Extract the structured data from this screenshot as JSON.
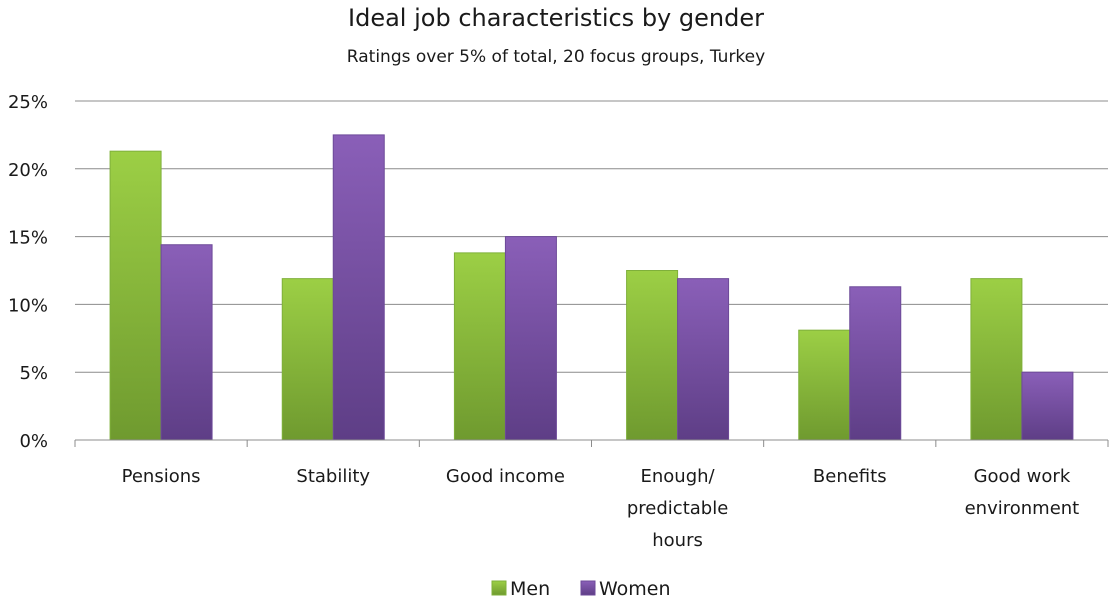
{
  "chart_data": {
    "type": "bar",
    "title": "Ideal job characteristics by gender",
    "subtitle": "Ratings over 5% of total, 20 focus groups, Turkey",
    "categories": [
      [
        "Pensions"
      ],
      [
        "Stability"
      ],
      [
        "Good income"
      ],
      [
        "Enough/",
        "predictable",
        "hours"
      ],
      [
        "Benefits"
      ],
      [
        "Good work",
        "environment"
      ]
    ],
    "series": [
      {
        "name": "Men",
        "values": [
          21.3,
          11.9,
          13.8,
          12.5,
          8.1,
          11.9
        ]
      },
      {
        "name": "Women",
        "values": [
          14.4,
          22.5,
          15.0,
          11.9,
          11.3,
          5.0
        ]
      }
    ],
    "y_ticks": [
      "0%",
      "5%",
      "10%",
      "15%",
      "20%",
      "25%"
    ],
    "ylim": [
      0,
      25
    ],
    "y_tick_step": 5,
    "grid": true,
    "legend_position": "bottom",
    "colors": {
      "Men": {
        "top": "#9ccf45",
        "bottom": "#6f9a2f",
        "edge": "#7fb03a"
      },
      "Women": {
        "top": "#8a5fb8",
        "bottom": "#5e3e86",
        "edge": "#6d4a99"
      }
    }
  }
}
